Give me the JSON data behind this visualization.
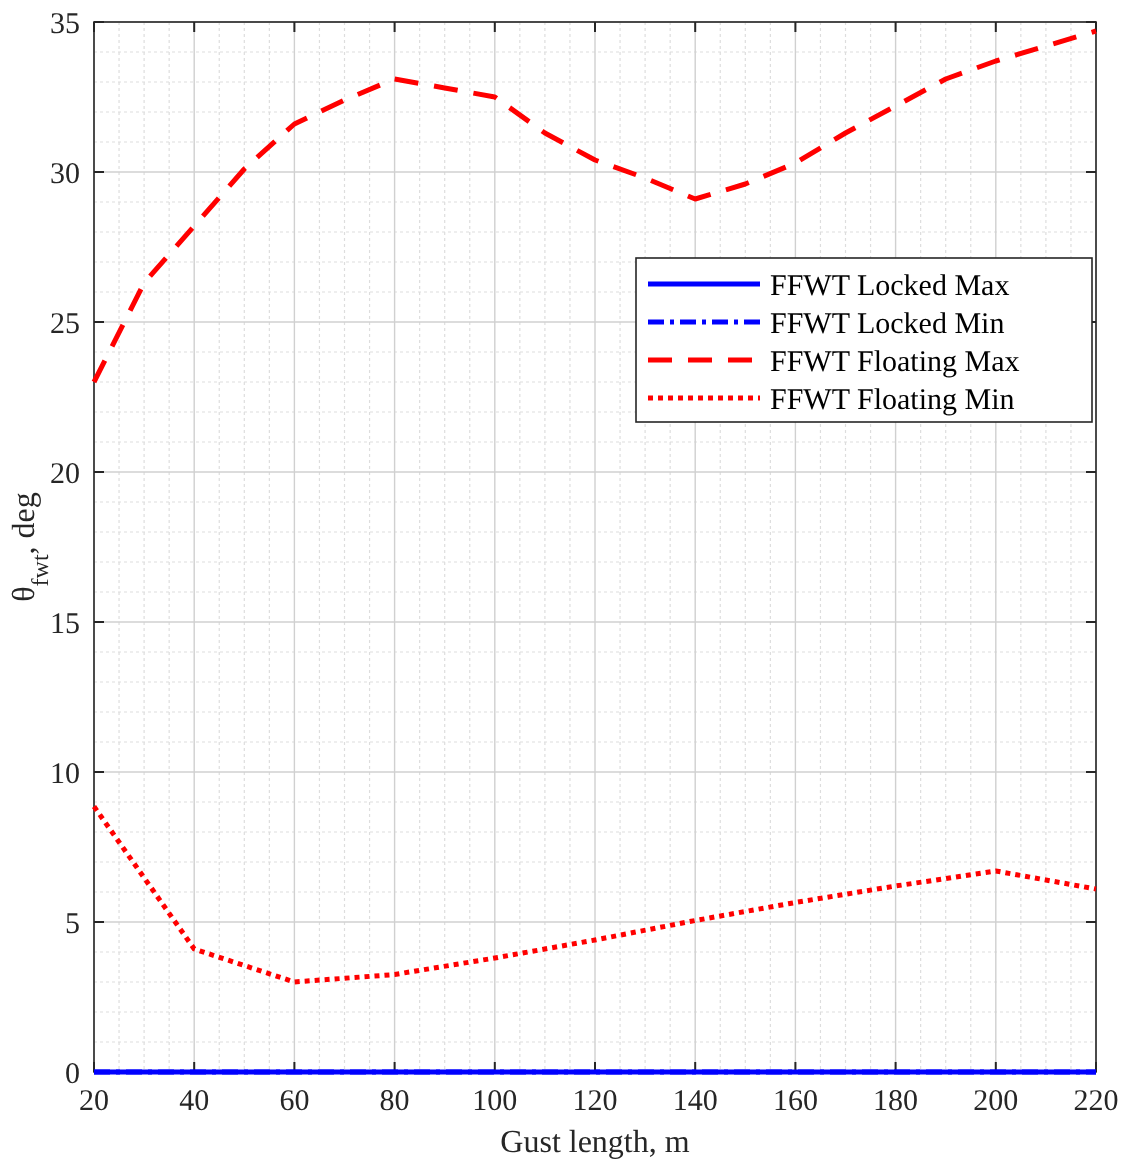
{
  "chart_data": {
    "type": "line",
    "xlabel": "Gust length, m",
    "ylabel": "θ$_{fwt}$, deg",
    "xlim": [
      20,
      220
    ],
    "xticks": [
      20,
      40,
      60,
      80,
      100,
      120,
      140,
      160,
      180,
      200,
      220
    ],
    "ylim": [
      0,
      35
    ],
    "yticks": [
      0,
      5,
      10,
      15,
      20,
      25,
      30,
      35
    ],
    "grid": true,
    "legend": "right",
    "series": [
      {
        "name": "FFWT Locked Max",
        "color": "#0000ff",
        "line_style": "solid",
        "x": [
          20,
          220
        ],
        "values": [
          0,
          0
        ]
      },
      {
        "name": "FFWT Locked Min",
        "color": "#0000ff",
        "line_style": "dashdot",
        "x": [
          20,
          220
        ],
        "values": [
          0,
          0
        ]
      },
      {
        "name": "FFWT Floating Max",
        "color": "#ff0000",
        "line_style": "dashed",
        "x": [
          20,
          30,
          40,
          50,
          60,
          70,
          80,
          90,
          100,
          110,
          120,
          130,
          140,
          150,
          160,
          170,
          180,
          190,
          200,
          210,
          220
        ],
        "values": [
          23,
          26.3,
          28.2,
          30.1,
          31.6,
          32.4,
          33.1,
          32.8,
          32.5,
          31.3,
          30.4,
          29.8,
          29.1,
          29.6,
          30.3,
          31.3,
          32.2,
          33.1,
          33.7,
          34.2,
          34.7
        ]
      },
      {
        "name": "FFWT Floating Min",
        "color": "#ff0000",
        "line_style": "dotted",
        "x": [
          20,
          40,
          60,
          80,
          100,
          120,
          140,
          160,
          180,
          200,
          220
        ],
        "values": [
          8.85,
          4.1,
          3.0,
          3.25,
          3.8,
          4.4,
          5.05,
          5.65,
          6.2,
          6.7,
          6.1
        ]
      }
    ]
  }
}
